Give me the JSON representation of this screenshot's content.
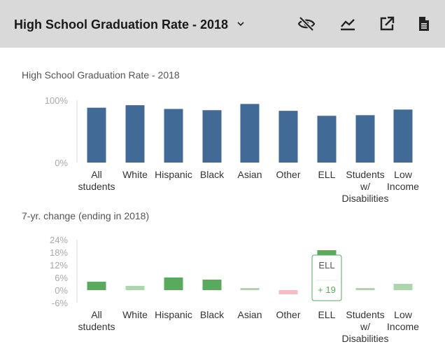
{
  "header": {
    "title": "High School Graduation Rate - 2018",
    "icons": [
      "hide-icon",
      "trend-line-icon",
      "open-external-icon",
      "document-icon"
    ]
  },
  "chart_data": [
    {
      "type": "bar",
      "title": "High School Graduation Rate - 2018",
      "categories": [
        "All students",
        "White",
        "Hispanic",
        "Black",
        "Asian",
        "Other",
        "ELL",
        "Students w/ Disabilities",
        "Low Income"
      ],
      "category_lines": [
        [
          "All",
          "students"
        ],
        [
          "White"
        ],
        [
          "Hispanic"
        ],
        [
          "Black"
        ],
        [
          "Asian"
        ],
        [
          "Other"
        ],
        [
          "ELL"
        ],
        [
          "Students",
          "w/",
          "Disabilities"
        ],
        [
          "Low",
          "Income"
        ]
      ],
      "values": [
        88,
        92,
        86,
        84,
        94,
        83,
        75,
        76,
        85
      ],
      "ylim": [
        0,
        100
      ],
      "yticks": [
        "100%",
        "0%"
      ],
      "color": "#426a97"
    },
    {
      "type": "bar",
      "title": "7-yr. change (ending in 2018)",
      "categories": [
        "All students",
        "White",
        "Hispanic",
        "Black",
        "Asian",
        "Other",
        "ELL",
        "Students w/ Disabilities",
        "Low Income"
      ],
      "category_lines": [
        [
          "All",
          "students"
        ],
        [
          "White"
        ],
        [
          "Hispanic"
        ],
        [
          "Black"
        ],
        [
          "Asian"
        ],
        [
          "Other"
        ],
        [
          "ELL"
        ],
        [
          "Students",
          "w/",
          "Disabilities"
        ],
        [
          "Low",
          "Income"
        ]
      ],
      "values": [
        4,
        2,
        6,
        5,
        1,
        -2,
        19,
        1,
        3
      ],
      "colors": [
        "#5aaa5e",
        "#acd7ad",
        "#5aaa5e",
        "#5aaa5e",
        "#acd7ad",
        "#f6bcc4",
        "#5aaa5e",
        "#acd7ad",
        "#acd7ad"
      ],
      "ylim": [
        -6,
        24
      ],
      "yticks": [
        "24%",
        "18%",
        "12%",
        "6%",
        "0%",
        "-6%"
      ],
      "tooltip": {
        "category": "ELL",
        "value": "+ 19",
        "color": "#5aaa5e"
      }
    }
  ]
}
